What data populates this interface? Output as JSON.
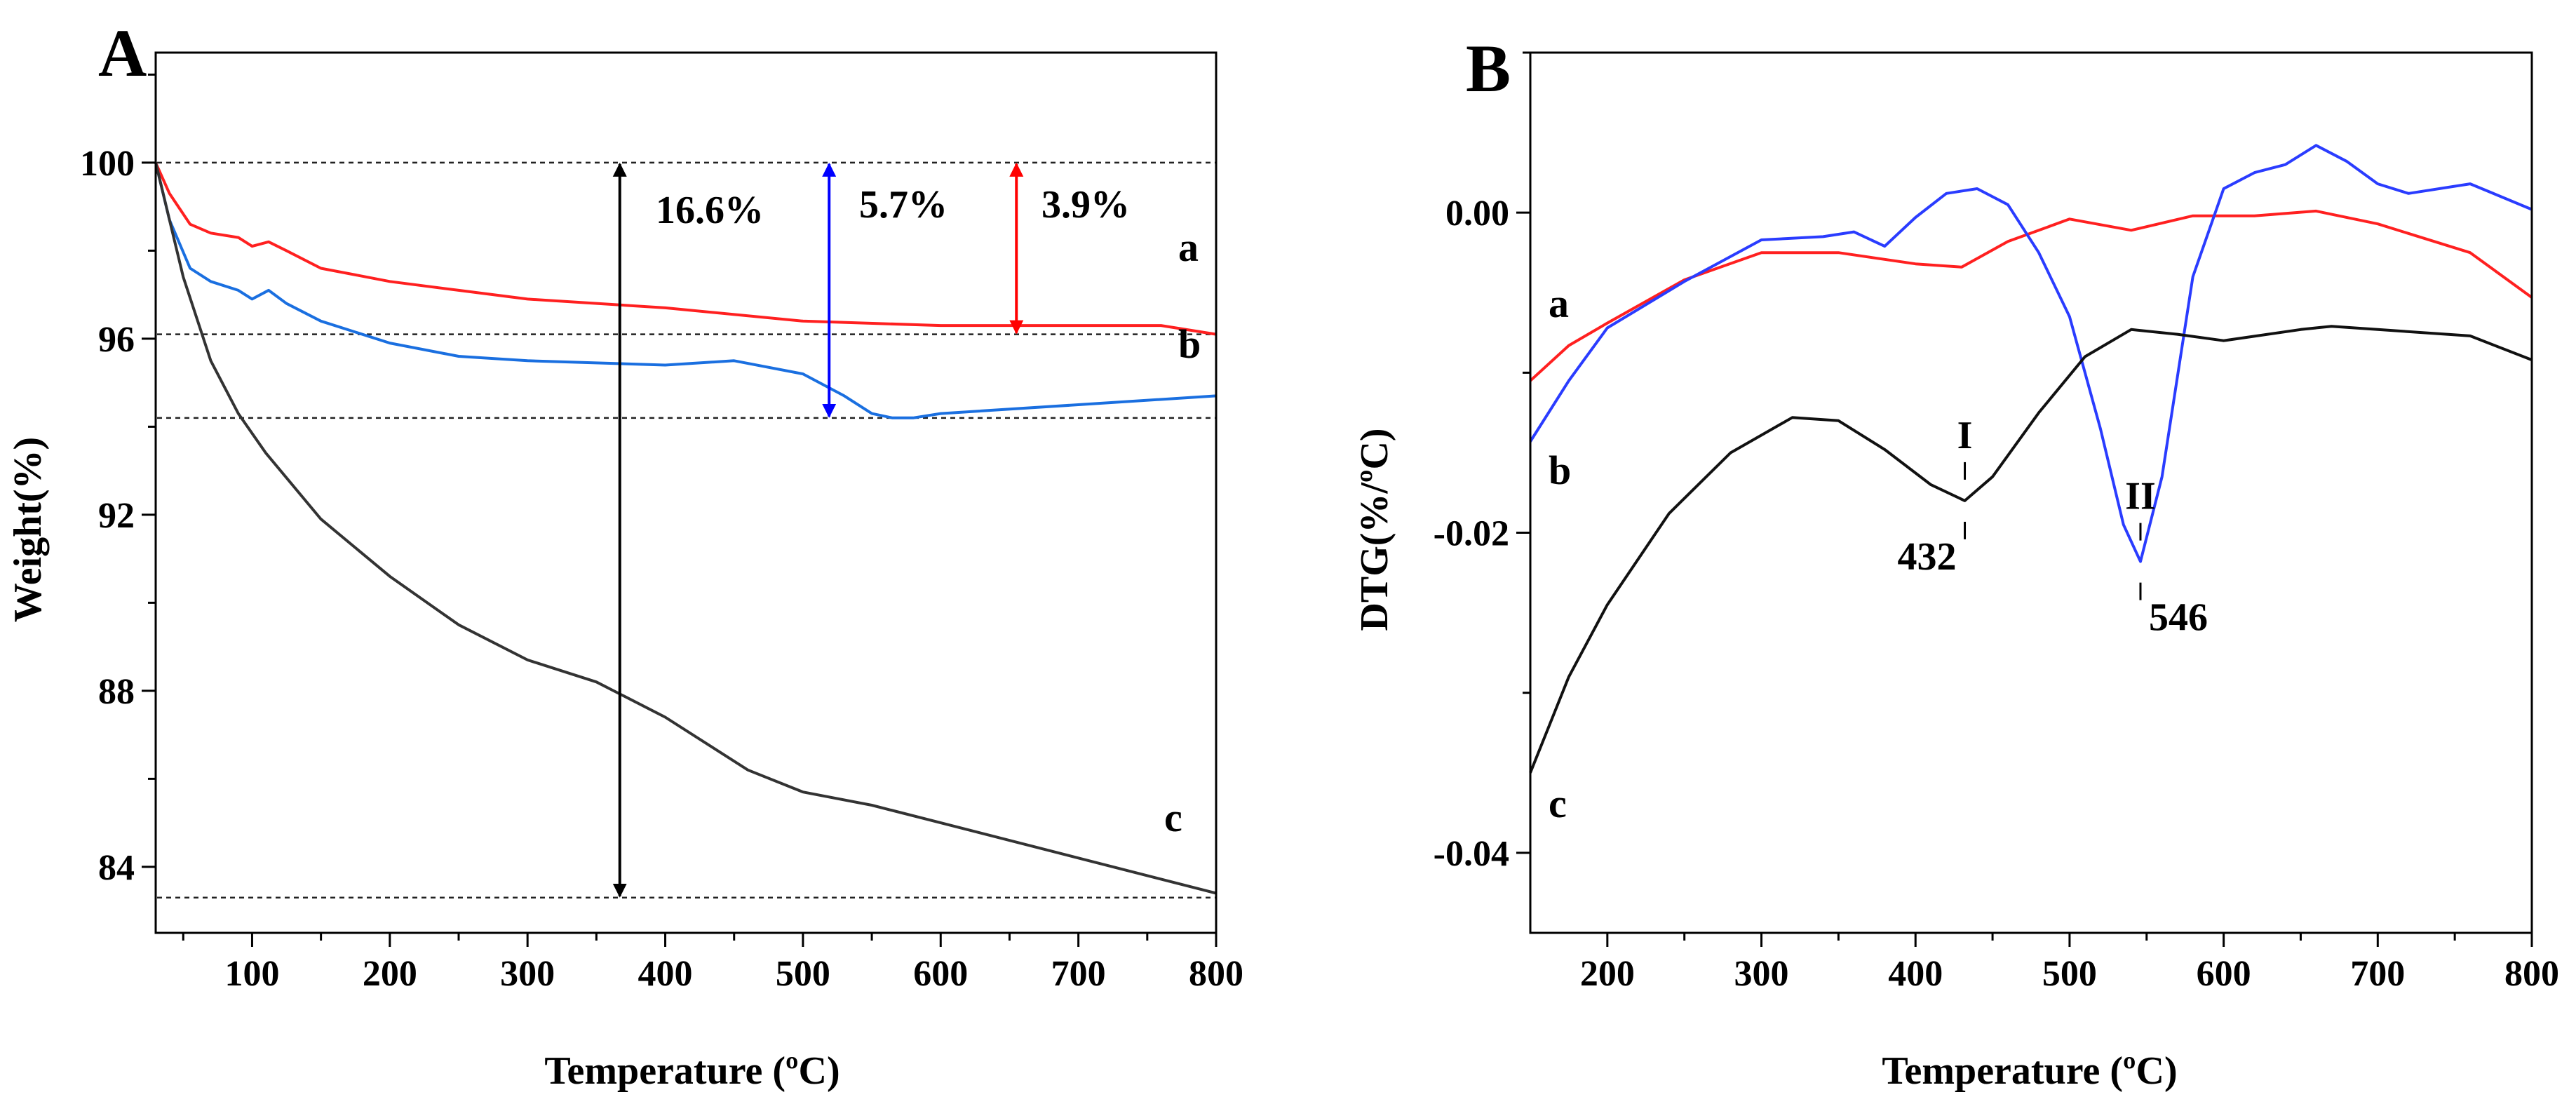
{
  "chart_data": [
    {
      "panel": "A",
      "type": "line",
      "xlabel": "Temperature (ºC)",
      "ylabel": "Weight(%)",
      "xlim": [
        30,
        800
      ],
      "ylim": [
        82.5,
        102.5
      ],
      "xticks": [
        100,
        200,
        300,
        400,
        500,
        600,
        700,
        800
      ],
      "yticks": [
        84,
        88,
        92,
        96,
        100
      ],
      "colors": {
        "a": "#ff2020",
        "b": "#1a6fe0",
        "c": "#333333"
      },
      "series": [
        {
          "name": "a",
          "label": "a",
          "x": [
            30,
            40,
            55,
            70,
            90,
            100,
            112,
            125,
            150,
            200,
            250,
            300,
            400,
            500,
            600,
            700,
            760,
            800
          ],
          "y": [
            100.0,
            99.3,
            98.6,
            98.4,
            98.3,
            98.1,
            98.2,
            98.0,
            97.6,
            97.3,
            97.1,
            96.9,
            96.7,
            96.4,
            96.3,
            96.3,
            96.3,
            96.1
          ]
        },
        {
          "name": "b",
          "label": "b",
          "x": [
            30,
            40,
            55,
            70,
            90,
            100,
            112,
            125,
            150,
            200,
            250,
            300,
            400,
            450,
            500,
            530,
            550,
            565,
            580,
            600,
            700,
            800
          ],
          "y": [
            100.0,
            98.7,
            97.6,
            97.3,
            97.1,
            96.9,
            97.1,
            96.8,
            96.4,
            95.9,
            95.6,
            95.5,
            95.4,
            95.5,
            95.2,
            94.7,
            94.3,
            94.2,
            94.2,
            94.3,
            94.5,
            94.7
          ]
        },
        {
          "name": "c",
          "label": "c",
          "x": [
            30,
            50,
            70,
            90,
            110,
            150,
            200,
            250,
            300,
            350,
            400,
            430,
            460,
            500,
            550,
            600,
            700,
            800
          ],
          "y": [
            100.0,
            97.4,
            95.5,
            94.3,
            93.4,
            91.9,
            90.6,
            89.5,
            88.7,
            88.2,
            87.4,
            86.8,
            86.2,
            85.7,
            85.4,
            85.0,
            84.2,
            83.4
          ]
        }
      ],
      "reference_lines": [
        100.0,
        96.1,
        94.2,
        83.3
      ],
      "annotations": [
        {
          "text": "16.6%",
          "x": 367,
          "from": 100.0,
          "to": 83.3,
          "color": "#000000"
        },
        {
          "text": "5.7%",
          "x": 519,
          "from": 100.0,
          "to": 94.2,
          "color": "#0000ff"
        },
        {
          "text": "3.9%",
          "x": 655,
          "from": 100.0,
          "to": 96.1,
          "color": "#ff0000"
        }
      ]
    },
    {
      "panel": "B",
      "type": "line",
      "xlabel": "Temperature (ºC)",
      "ylabel": "DTG(%/ºC)",
      "xlim": [
        150,
        800
      ],
      "ylim": [
        -0.045,
        0.01
      ],
      "xticks": [
        200,
        300,
        400,
        500,
        600,
        700,
        800
      ],
      "yticks": [
        0.0,
        -0.02,
        -0.04
      ],
      "ytick_labels": [
        "0.00",
        "-0.02",
        "-0.04"
      ],
      "colors": {
        "a": "#ff2020",
        "b": "#2a3cff",
        "c": "#111111"
      },
      "series": [
        {
          "name": "a",
          "label": "a",
          "x": [
            150,
            175,
            200,
            250,
            300,
            350,
            400,
            430,
            460,
            500,
            540,
            580,
            620,
            660,
            700,
            760,
            800
          ],
          "y": [
            -0.0105,
            -0.0083,
            -0.0069,
            -0.0042,
            -0.0025,
            -0.0025,
            -0.0032,
            -0.0034,
            -0.0018,
            -0.0004,
            -0.0011,
            -0.0002,
            -0.0002,
            0.0001,
            -0.0007,
            -0.0025,
            -0.0053
          ]
        },
        {
          "name": "b",
          "label": "b",
          "x": [
            150,
            175,
            200,
            250,
            300,
            340,
            360,
            380,
            400,
            420,
            440,
            460,
            480,
            500,
            520,
            535,
            546,
            560,
            580,
            600,
            620,
            640,
            660,
            680,
            700,
            720,
            760,
            800
          ],
          "y": [
            -0.0143,
            -0.0105,
            -0.0072,
            -0.0043,
            -0.0017,
            -0.0015,
            -0.0012,
            -0.0021,
            -0.0003,
            0.0012,
            0.0015,
            0.0005,
            -0.0025,
            -0.0065,
            -0.0135,
            -0.0195,
            -0.0218,
            -0.0165,
            -0.004,
            0.0015,
            0.0025,
            0.003,
            0.0042,
            0.0032,
            0.0018,
            0.0012,
            0.0018,
            0.0002
          ]
        },
        {
          "name": "c",
          "label": "c",
          "x": [
            150,
            175,
            200,
            240,
            280,
            320,
            350,
            380,
            410,
            432,
            450,
            480,
            510,
            540,
            570,
            600,
            650,
            670,
            700,
            760,
            800
          ],
          "y": [
            -0.035,
            -0.029,
            -0.0245,
            -0.0188,
            -0.015,
            -0.0128,
            -0.013,
            -0.0148,
            -0.017,
            -0.018,
            -0.0165,
            -0.0125,
            -0.009,
            -0.0073,
            -0.0076,
            -0.008,
            -0.0073,
            -0.0071,
            -0.0073,
            -0.0077,
            -0.0092
          ]
        }
      ],
      "peaks": [
        {
          "roman": "I",
          "temp": "432",
          "x": 432,
          "y": -0.018
        },
        {
          "roman": "II",
          "temp": "546",
          "x": 546,
          "y": -0.0218
        }
      ]
    }
  ]
}
